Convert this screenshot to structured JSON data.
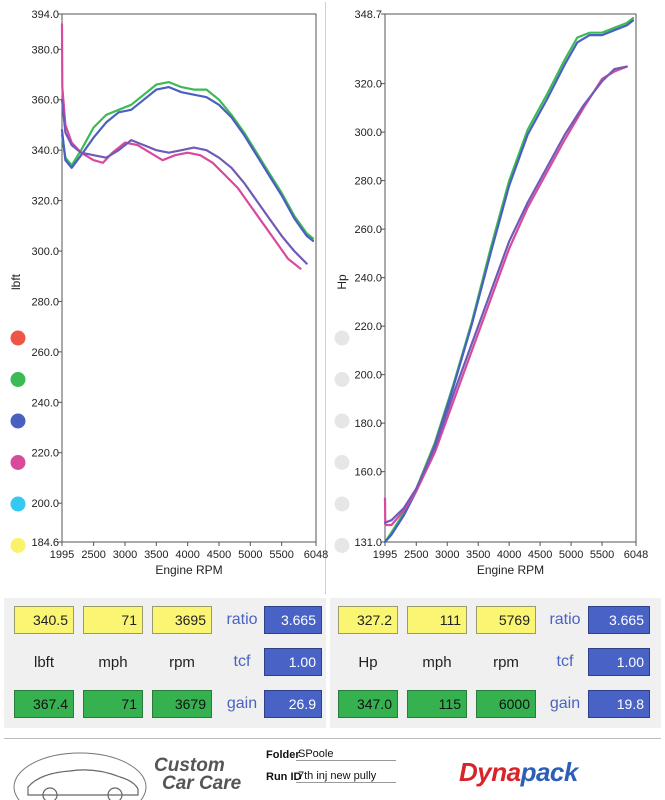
{
  "chart_data": [
    {
      "type": "line",
      "xlabel": "Engine RPM",
      "ylabel": "lbft",
      "xlim": [
        1995,
        6048
      ],
      "ylim": [
        184.6,
        394.0
      ],
      "x_ticks": [
        "1995",
        "2500",
        "3000",
        "3500",
        "4000",
        "4500",
        "5000",
        "5500",
        "6048"
      ],
      "y_ticks": [
        "394.0",
        "380.0",
        "360.0",
        "340.0",
        "320.0",
        "300.0",
        "280.0",
        "260.0",
        "240.0",
        "220.0",
        "200.0",
        "184.6"
      ],
      "y_tick_values": [
        394.0,
        380.0,
        360.0,
        340.0,
        320.0,
        300.0,
        280.0,
        260.0,
        240.0,
        220.0,
        200.0,
        184.6
      ],
      "grid": false,
      "legend_placement": "left",
      "legend_swatch_colors": [
        "#ee5544",
        "#3cba54",
        "#4a60c0",
        "#d84a9c",
        "#33c9f2",
        "#fbf26b"
      ],
      "series": [
        {
          "color": "#3cba54",
          "x": [
            1995,
            2050,
            2150,
            2300,
            2500,
            2700,
            2900,
            3100,
            3300,
            3500,
            3700,
            3900,
            4100,
            4300,
            4500,
            4700,
            4900,
            5100,
            5300,
            5500,
            5700,
            5900,
            6000
          ],
          "y": [
            346,
            337,
            334,
            340,
            349,
            354,
            356,
            358,
            362,
            366,
            367,
            365,
            364,
            364,
            360,
            354,
            347,
            339,
            331,
            323,
            314,
            307,
            305
          ]
        },
        {
          "color": "#4a60c0",
          "x": [
            1995,
            2050,
            2150,
            2300,
            2500,
            2700,
            2900,
            3100,
            3300,
            3500,
            3700,
            3900,
            4100,
            4300,
            4500,
            4700,
            4900,
            5100,
            5300,
            5500,
            5700,
            5900,
            6000
          ],
          "y": [
            348,
            336,
            333,
            338,
            345,
            351,
            355,
            356,
            360,
            364,
            365,
            363,
            362,
            361,
            358,
            353,
            346,
            338,
            330,
            322,
            313,
            306,
            304
          ]
        },
        {
          "color": "#d84a9c",
          "x": [
            1995,
            2000,
            2050,
            2150,
            2300,
            2500,
            2650,
            2800,
            3000,
            3200,
            3400,
            3600,
            3800,
            4000,
            4200,
            4400,
            4600,
            4800,
            5000,
            5200,
            5400,
            5600,
            5800
          ],
          "y": [
            390,
            365,
            350,
            343,
            339,
            336,
            335,
            339,
            343,
            342,
            339,
            336,
            338,
            339,
            338,
            335,
            330,
            325,
            318,
            311,
            304,
            297,
            293
          ]
        },
        {
          "color": "#6f5ab8",
          "x": [
            1995,
            2050,
            2150,
            2300,
            2500,
            2700,
            2900,
            3100,
            3300,
            3500,
            3700,
            3900,
            4100,
            4300,
            4500,
            4700,
            4900,
            5100,
            5300,
            5500,
            5700,
            5900
          ],
          "y": [
            360,
            347,
            342,
            339,
            338,
            337,
            340,
            344,
            342,
            340,
            339,
            340,
            341,
            340,
            337,
            333,
            327,
            320,
            313,
            306,
            300,
            295
          ]
        }
      ]
    },
    {
      "type": "line",
      "xlabel": "Engine RPM",
      "ylabel": "Hp",
      "xlim": [
        1995,
        6048
      ],
      "ylim": [
        131.0,
        348.7
      ],
      "x_ticks": [
        "1995",
        "2500",
        "3000",
        "3500",
        "4000",
        "4500",
        "5000",
        "5500",
        "6048"
      ],
      "y_ticks": [
        "348.7",
        "320.0",
        "300.0",
        "280.0",
        "260.0",
        "240.0",
        "220.0",
        "200.0",
        "180.0",
        "160.0",
        "131.0"
      ],
      "y_tick_values": [
        348.7,
        320.0,
        300.0,
        280.0,
        260.0,
        240.0,
        220.0,
        200.0,
        180.0,
        160.0,
        131.0
      ],
      "grid": false,
      "legend_placement": "left",
      "legend_swatch_colors": [
        "#e6e6e6",
        "#e6e6e6",
        "#e6e6e6",
        "#e6e6e6",
        "#e6e6e6",
        "#e6e6e6"
      ],
      "series": [
        {
          "color": "#3cba54",
          "x": [
            1995,
            2100,
            2300,
            2500,
            2800,
            3100,
            3400,
            3700,
            4000,
            4300,
            4600,
            4900,
            5100,
            5300,
            5500,
            5700,
            5900,
            6000
          ],
          "y": [
            131,
            135,
            143,
            153,
            172,
            196,
            222,
            252,
            280,
            301,
            315,
            330,
            339,
            341,
            341,
            343,
            345,
            347
          ]
        },
        {
          "color": "#4a60c0",
          "x": [
            1995,
            2100,
            2300,
            2500,
            2800,
            3100,
            3400,
            3700,
            4000,
            4300,
            4600,
            4900,
            5100,
            5300,
            5500,
            5700,
            5900,
            6000
          ],
          "y": [
            131,
            134,
            142,
            152,
            171,
            195,
            221,
            250,
            278,
            299,
            313,
            328,
            337,
            340,
            340,
            342,
            344,
            346
          ]
        },
        {
          "color": "#d84a9c",
          "x": [
            1995,
            2000,
            2100,
            2300,
            2500,
            2800,
            3100,
            3400,
            3700,
            4000,
            4300,
            4600,
            4900,
            5200,
            5500,
            5700,
            5900
          ],
          "y": [
            149,
            138,
            138,
            144,
            152,
            168,
            189,
            210,
            231,
            252,
            269,
            283,
            297,
            310,
            322,
            325,
            327
          ]
        },
        {
          "color": "#6f5ab8",
          "x": [
            1995,
            2100,
            2300,
            2500,
            2800,
            3100,
            3400,
            3700,
            4000,
            4300,
            4600,
            4900,
            5200,
            5500,
            5700,
            5900
          ],
          "y": [
            139,
            140,
            145,
            153,
            170,
            192,
            213,
            234,
            255,
            271,
            285,
            299,
            311,
            321,
            326,
            327
          ]
        }
      ]
    }
  ],
  "readout_left": {
    "row1": {
      "torque": "340.5",
      "speed": "71",
      "rpm": "3695"
    },
    "ratio_label": "ratio",
    "ratio_value": "3.665",
    "units": {
      "torque": "lbft",
      "speed": "mph",
      "rpm": "rpm"
    },
    "tcf_label": "tcf",
    "tcf_value": "1.00",
    "row2": {
      "torque": "367.4",
      "speed": "71",
      "rpm": "3679"
    },
    "gain_label": "gain",
    "gain_value": "26.9"
  },
  "readout_right": {
    "row1": {
      "power": "327.2",
      "speed": "111",
      "rpm": "5769"
    },
    "ratio_label": "ratio",
    "ratio_value": "3.665",
    "units": {
      "power": "Hp",
      "speed": "mph",
      "rpm": "rpm"
    },
    "tcf_label": "tcf",
    "tcf_value": "1.00",
    "row2": {
      "power": "347.0",
      "speed": "115",
      "rpm": "6000"
    },
    "gain_label": "gain",
    "gain_value": "19.8"
  },
  "footer": {
    "brand_line1": "Custom",
    "brand_line2": "Car Care",
    "folder_label": "Folder",
    "folder_value": "SPoole",
    "runid_label": "Run ID",
    "runid_value": "7th inj new pully",
    "dyna_part1": "Dyna",
    "dyna_part2": "pack"
  }
}
